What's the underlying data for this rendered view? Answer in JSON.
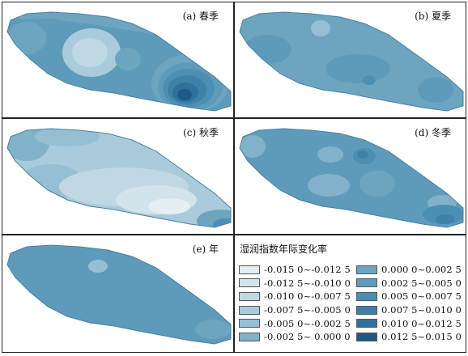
{
  "panels": [
    {
      "id": "a",
      "label": "(a) 春季"
    },
    {
      "id": "b",
      "label": "(b) 夏季"
    },
    {
      "id": "c",
      "label": "(c) 秋季"
    },
    {
      "id": "d",
      "label": "(d) 冬季"
    },
    {
      "id": "e",
      "label": "(e) 年"
    }
  ],
  "legend": {
    "title": "湿润指数年际变化率",
    "items": [
      {
        "label": "-0.015 0~-0.012 5",
        "color": "#e4eef3"
      },
      {
        "label": "-0.012 5~-0.010 0",
        "color": "#d2e3eb"
      },
      {
        "label": "-0.010 0~-0.007 5",
        "color": "#c0d8e4"
      },
      {
        "label": "-0.007 5~-0.005 0",
        "color": "#aacbdc"
      },
      {
        "label": "-0.005 0~-0.002 5",
        "color": "#97bfd3"
      },
      {
        "label": "-0.002 5~ 0.000 0",
        "color": "#82b2ca"
      },
      {
        "label": "0.000 0~0.002 5",
        "color": "#6da5c1"
      },
      {
        "label": "0.002 5~0.005 0",
        "color": "#5e9bbb"
      },
      {
        "label": "0.005 0~0.007 5",
        "color": "#4d8fb3"
      },
      {
        "label": "0.007 5~0.010 0",
        "color": "#3f81a8"
      },
      {
        "label": "0.010 0~0.012 5",
        "color": "#2f719c"
      },
      {
        "label": "0.012 5~0.015 0",
        "color": "#1e5a88"
      }
    ]
  }
}
